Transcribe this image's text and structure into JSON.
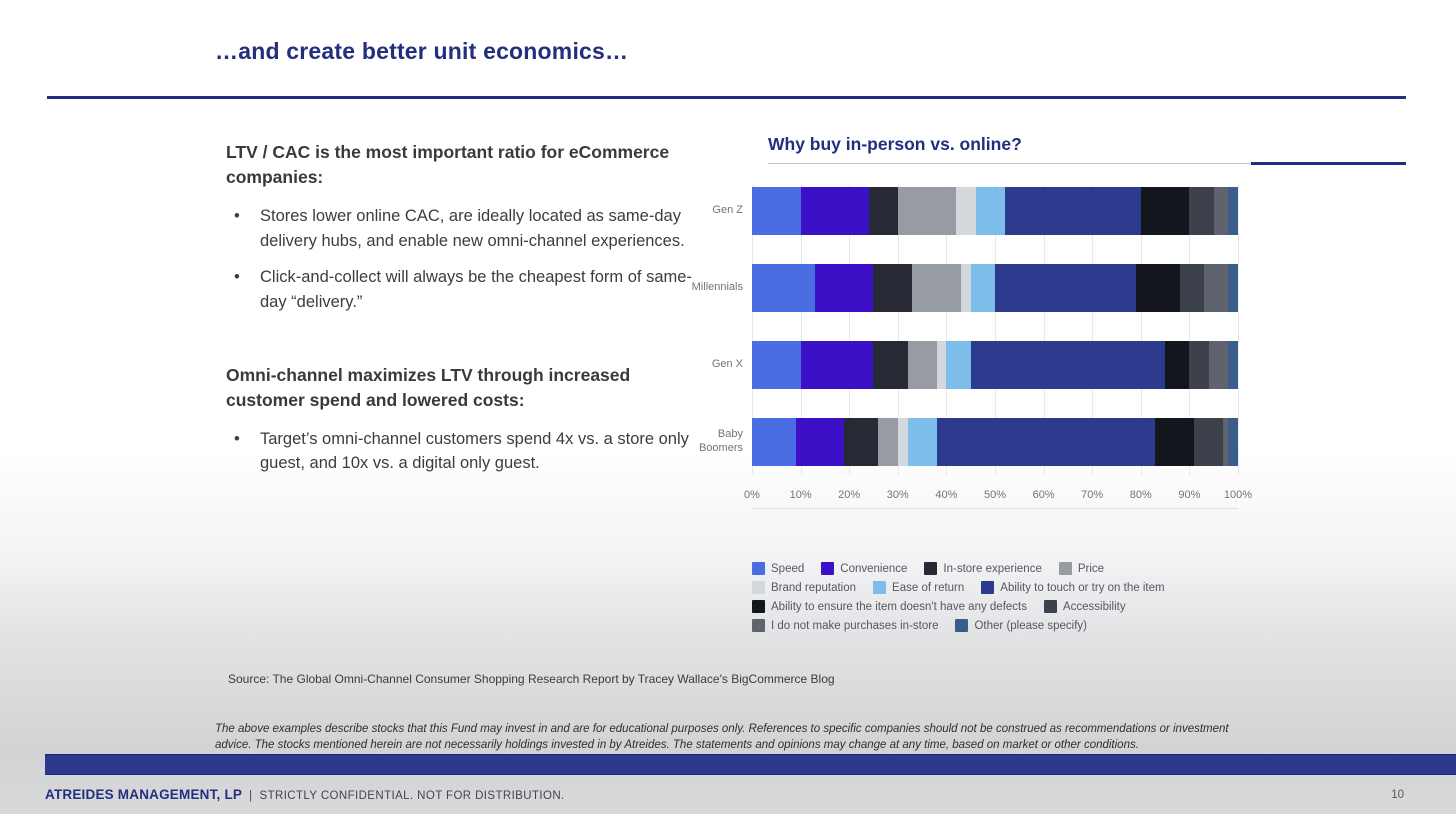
{
  "slide": {
    "title": "…and create better unit economics…"
  },
  "left_column": {
    "section1": {
      "heading": "LTV / CAC is the most important ratio for eCommerce companies:",
      "bullets": [
        "Stores lower online CAC, are ideally located as same-day delivery hubs, and enable new omni-channel experiences.",
        "Click-and-collect will always be the cheapest form of same-day “delivery.”"
      ]
    },
    "section2": {
      "heading": "Omni-channel maximizes LTV through increased customer spend and lowered costs:",
      "bullets": [
        "Target’s omni-channel customers spend 4x vs. a store only guest, and 10x vs. a digital only guest."
      ]
    }
  },
  "chart": {
    "heading": "Why buy in-person vs. online?"
  },
  "chart_data": {
    "type": "bar",
    "orientation": "horizontal",
    "stacked": true,
    "unit": "percent",
    "title": "Why buy in-person vs. online?",
    "categories": [
      "Gen Z",
      "Millennials",
      "Gen X",
      "Baby Boomers"
    ],
    "series": [
      {
        "name": "Speed",
        "color": "#4a6ee1",
        "values": [
          10,
          13,
          10,
          9
        ]
      },
      {
        "name": "Convenience",
        "color": "#3c10c6",
        "values": [
          14,
          12,
          15,
          10
        ]
      },
      {
        "name": "In-store experience",
        "color": "#272934",
        "values": [
          6,
          8,
          7,
          7
        ]
      },
      {
        "name": "Price",
        "color": "#969ca1",
        "values": [
          12,
          10,
          6,
          4
        ]
      },
      {
        "name": "Brand reputation",
        "color": "#d3d8dc",
        "values": [
          4,
          2,
          2,
          2
        ]
      },
      {
        "name": "Ease of return",
        "color": "#7cbde9",
        "values": [
          6,
          5,
          5,
          6
        ]
      },
      {
        "name": "Ability to touch or try on the item",
        "color": "#2c3b8e",
        "values": [
          28,
          29,
          40,
          45
        ]
      },
      {
        "name": "Ability to ensure the item doesn't have any defects",
        "color": "#14161d",
        "values": [
          10,
          9,
          5,
          8
        ]
      },
      {
        "name": "Accessibility",
        "color": "#3c414c",
        "values": [
          5,
          5,
          4,
          6
        ]
      },
      {
        "name": "I do not make purchases in-store",
        "color": "#5f636d",
        "values": [
          3,
          5,
          4,
          1
        ]
      },
      {
        "name": "Other (please specify)",
        "color": "#3a5d8a",
        "values": [
          2,
          2,
          2,
          2
        ]
      }
    ],
    "x_ticks": [
      "0%",
      "10%",
      "20%",
      "30%",
      "40%",
      "50%",
      "60%",
      "70%",
      "80%",
      "90%",
      "100%"
    ],
    "xlim": [
      0,
      100
    ],
    "grid": true,
    "legend_position": "bottom",
    "legend_rows": [
      [
        0,
        1,
        2,
        3
      ],
      [
        4,
        5,
        6
      ],
      [
        7,
        8
      ],
      [
        9,
        10
      ]
    ]
  },
  "source": "Source: The Global Omni-Channel Consumer Shopping Research Report by Tracey Wallace's BigCommerce Blog",
  "disclaimer": "The above examples describe stocks that this Fund may invest in and are for educational purposes only.  References to specific companies should not be construed as recommendations or investment advice.  The stocks mentioned herein are not necessarily holdings invested in by Atreides.  The statements and opinions may change at any time, based on market or other conditions.",
  "footer": {
    "company": "ATREIDES MANAGEMENT, LP",
    "separator": "|",
    "confidential": "STRICTLY CONFIDENTIAL. NOT FOR DISTRIBUTION.",
    "page_number": "10"
  },
  "colors": {
    "accent_navy": "#242e7e",
    "footer_bar_navy": "#2d398d"
  }
}
